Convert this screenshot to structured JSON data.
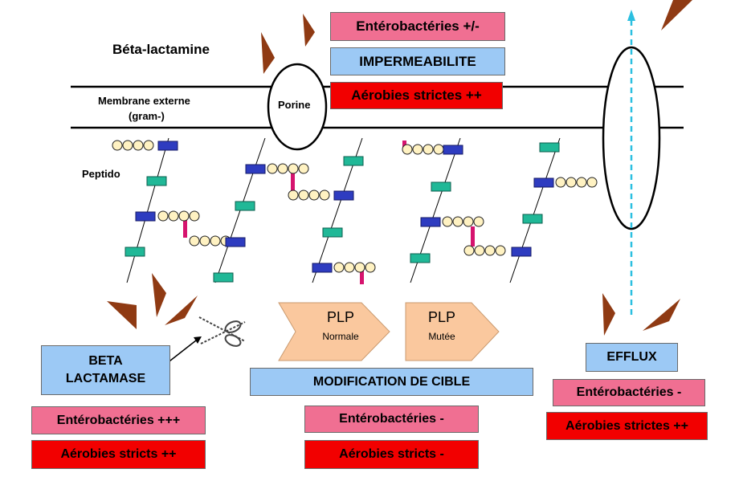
{
  "labels": {
    "beta_lactamine": "Béta-lactamine",
    "membrane_line1": "Membrane externe",
    "membrane_line2": "(gram-)",
    "peptido": "Peptido",
    "porine": "Porine"
  },
  "top_boxes": {
    "enterobacteries": "Entérobactéries +/-",
    "impermeabilite": "IMPERMEABILITE",
    "aerobies": "Aérobies strictes ++"
  },
  "plp": {
    "normal_title": "PLP",
    "normal_sub": "Normale",
    "mutee_title": "PLP",
    "mutee_sub": "Mutée"
  },
  "beta_lactamase": {
    "line1": "BETA",
    "line2": "LACTAMASE",
    "enterobacteries": "Entérobactéries +++",
    "aerobies": "Aérobies stricts ++"
  },
  "modification": {
    "title": "MODIFICATION DE CIBLE",
    "enterobacteries": "Entérobactéries -",
    "aerobies": "Aérobies stricts -"
  },
  "efflux": {
    "title": "EFFLUX",
    "enterobacteries": "Entérobactéries -",
    "aerobies": "Aérobies strictes ++"
  },
  "colors": {
    "pink": "#f06f92",
    "blue": "#9cc9f5",
    "red": "#f20000",
    "plp_fill": "#fac89e",
    "nag": "#20b897",
    "nam": "#2e3cc0",
    "peptide_bead": "#fff2c2",
    "crosslink": "#d6136e",
    "antibiotic": "#8f3a13",
    "efflux_arrow": "#2bbfe0"
  },
  "icons": [
    "scissors-icon",
    "antibiotic-wedge-icon",
    "efflux-arrow-icon"
  ]
}
